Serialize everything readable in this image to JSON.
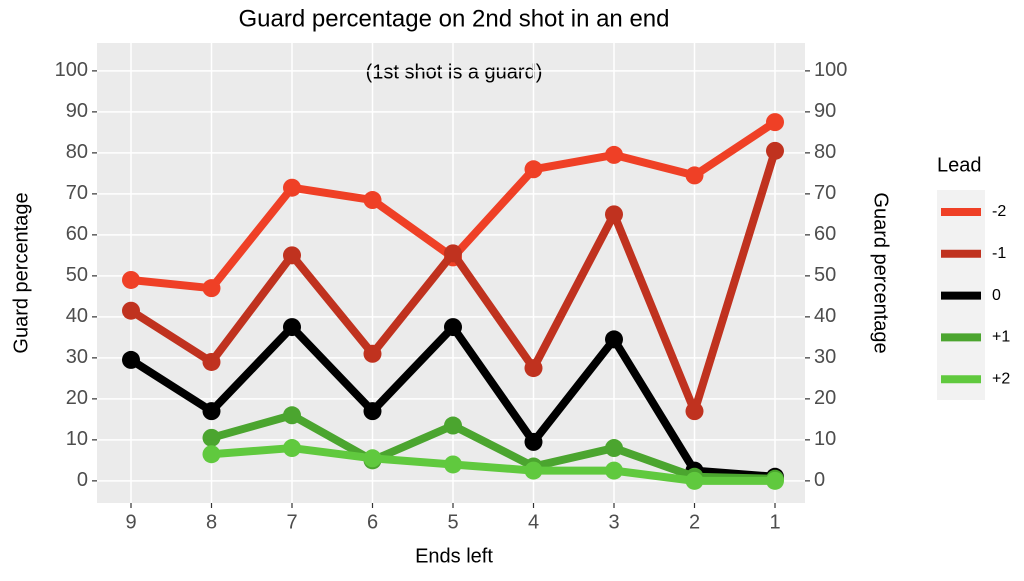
{
  "chart_data": {
    "type": "line",
    "title": "Guard percentage on 2nd shot in an end",
    "annotation": "(1st shot is a guard)",
    "x_label": "Ends left",
    "y_label": "Guard percentage",
    "y2_label": "Guard percentage",
    "legend_title": "Lead",
    "legend_position": "right",
    "grid": true,
    "categories": [
      "9",
      "8",
      "7",
      "6",
      "5",
      "4",
      "3",
      "2",
      "1"
    ],
    "ylim": [
      -5.4,
      106.8
    ],
    "yticks": [
      0,
      10,
      20,
      30,
      40,
      50,
      60,
      70,
      80,
      90,
      100
    ],
    "y2lim": [
      -5.4,
      106.8
    ],
    "y2ticks": [
      0,
      10,
      20,
      30,
      40,
      50,
      60,
      70,
      80,
      90,
      100
    ],
    "series": [
      {
        "name": "-2",
        "color": "#ef4026",
        "values": [
          49,
          47,
          71.5,
          68.5,
          54.5,
          76,
          79.5,
          74.5,
          87.5
        ]
      },
      {
        "name": "-1",
        "color": "#c0321f",
        "values": [
          41.5,
          29,
          55,
          31,
          55.5,
          27.5,
          65,
          17,
          80.5
        ]
      },
      {
        "name": "0",
        "color": "#000000",
        "values": [
          29.5,
          17,
          37.5,
          17,
          37.5,
          9.5,
          34.5,
          2.5,
          1
        ]
      },
      {
        "name": "+1",
        "color": "#4ba52f",
        "values": [
          null,
          10.5,
          16,
          5,
          13.5,
          3.5,
          8,
          1,
          0.5
        ]
      },
      {
        "name": "+2",
        "color": "#60c93e",
        "values": [
          null,
          6.5,
          8,
          5.5,
          4,
          2.5,
          2.5,
          0,
          0
        ]
      }
    ]
  }
}
